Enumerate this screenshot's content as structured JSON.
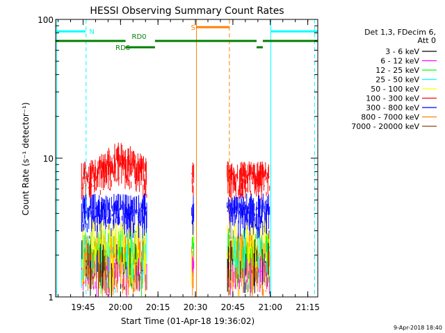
{
  "chart_data": {
    "type": "scatter",
    "title": "HESSI Observing Summary Count Rates",
    "xlabel": "Start Time (01-Apr-18 19:36:02)",
    "ylabel": "Count Rate (s⁻¹ detector⁻¹)",
    "yscale": "log",
    "ylim": [
      1,
      100
    ],
    "xlim_minutes": [
      -2,
      103
    ],
    "x_ticks": [
      {
        "t": 9,
        "label": "19:45"
      },
      {
        "t": 24,
        "label": "20:00"
      },
      {
        "t": 39,
        "label": "20:15"
      },
      {
        "t": 54,
        "label": "20:30"
      },
      {
        "t": 69,
        "label": "20:45"
      },
      {
        "t": 84,
        "label": "21:00"
      },
      {
        "t": 99,
        "label": "21:15"
      }
    ],
    "y_ticks": [
      {
        "v": 1,
        "label": "1"
      },
      {
        "v": 10,
        "label": "10"
      },
      {
        "v": 100,
        "label": "100"
      }
    ],
    "grid": false,
    "legend_placement": "right",
    "legend_header": [
      "Det 1,3, FDecim 6,",
      "Att 0"
    ],
    "series": [
      {
        "name": "3 - 6 keV",
        "color": "#000000",
        "band": [
          1.0,
          2.6
        ],
        "density": 0.12
      },
      {
        "name": "6 - 12 keV",
        "color": "#ff00ff",
        "band": [
          1.0,
          2.0
        ],
        "density": 0.25
      },
      {
        "name": "12 - 25 keV",
        "color": "#00ff00",
        "band": [
          1.0,
          3.1
        ],
        "density": 0.3
      },
      {
        "name": "25 - 50 keV",
        "color": "#00ffff",
        "band": [
          1.0,
          3.0
        ],
        "density": 0.2
      },
      {
        "name": "50 - 100 keV",
        "color": "#ffff00",
        "band": [
          1.0,
          3.6
        ],
        "density": 0.35
      },
      {
        "name": "100 - 300 keV",
        "color": "#ff0000",
        "band": [
          5.0,
          9.5
        ],
        "density": 1.0
      },
      {
        "name": "300 - 800 keV",
        "color": "#0000ff",
        "band": [
          2.6,
          5.6
        ],
        "density": 1.0
      },
      {
        "name": "800 - 7000 keV",
        "color": "#ff8000",
        "band": [
          1.0,
          2.9
        ],
        "density": 1.0
      },
      {
        "name": "7000 - 20000 keV",
        "color": "#8b4513",
        "band": [
          1.0,
          1.8
        ],
        "density": 0.1
      }
    ],
    "data_segments": [
      {
        "start": 8.4,
        "end": 34.5
      },
      {
        "start": 52.5,
        "end": 53.4
      },
      {
        "start": 66.7,
        "end": 83.8
      }
    ],
    "flags": [
      {
        "label": "N",
        "color": "#00ffff",
        "y": 82,
        "segments": [
          [
            -2,
            10.0
          ],
          [
            84.3,
            103
          ]
        ]
      },
      {
        "label": "RD0",
        "color": "#007f00",
        "y": 70,
        "segments": [
          [
            -2,
            26.0
          ],
          [
            37.8,
            78.5
          ],
          [
            81.0,
            103
          ]
        ]
      },
      {
        "label": "RD6",
        "color": "#007f00",
        "y": 63,
        "segments": [
          [
            26.0,
            37.8
          ],
          [
            78.5,
            81.0
          ]
        ]
      },
      {
        "label": "S",
        "color": "#ff8000",
        "y": 88,
        "segments": [
          [
            54.5,
            67.5
          ]
        ]
      }
    ],
    "vertical_lines": [
      {
        "t": -1.6,
        "color": "#00ffff",
        "style": "solid"
      },
      {
        "t": 10.2,
        "color": "#00ffff",
        "style": "dashed"
      },
      {
        "t": 54.4,
        "color": "#ff8000",
        "style": "solid"
      },
      {
        "t": 67.6,
        "color": "#ff8000",
        "style": "dashed"
      },
      {
        "t": 84.2,
        "color": "#00ffff",
        "style": "solid"
      },
      {
        "t": 101.7,
        "color": "#00ffff",
        "style": "dashed"
      }
    ],
    "timestamp": "9-Apr-2018 18:40"
  }
}
